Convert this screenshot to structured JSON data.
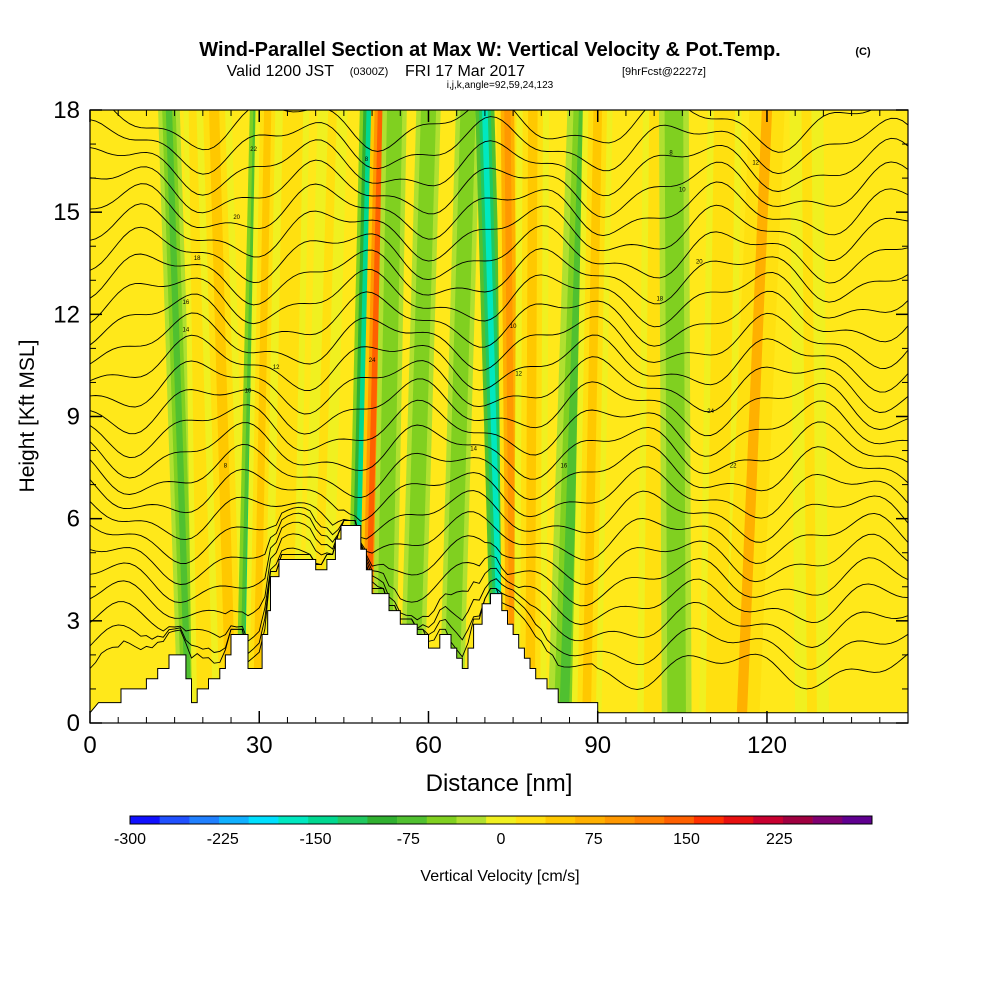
{
  "header": {
    "title": "Wind-Parallel Section at Max W: Vertical Velocity & Pot.Temp.",
    "title_unit": "(C)",
    "valid_prefix": "Valid 1200 JST",
    "valid_utc": "(0300Z)",
    "valid_date": "FRI 17 Mar 2017",
    "forecast": "[9hrFcst@2227z]",
    "indices": "i,j,k,angle=92,59,24,123"
  },
  "chart_data": {
    "type": "heatmap",
    "xlabel": "Distance [nm]",
    "ylabel": "Height [Kft MSL]",
    "xlim": [
      0,
      145
    ],
    "ylim": [
      0,
      18
    ],
    "x_ticks": [
      0,
      30,
      60,
      90,
      120
    ],
    "y_ticks": [
      0,
      3,
      6,
      9,
      12,
      15,
      18
    ],
    "terrain_profile": [
      [
        0,
        0.3
      ],
      [
        1.5,
        0.6
      ],
      [
        5.5,
        0.6
      ],
      [
        5.5,
        1.0
      ],
      [
        10,
        1.0
      ],
      [
        10,
        1.3
      ],
      [
        12,
        1.3
      ],
      [
        12,
        1.6
      ],
      [
        14,
        1.6
      ],
      [
        14,
        2.0
      ],
      [
        17,
        2.0
      ],
      [
        17,
        1.3
      ],
      [
        18,
        1.3
      ],
      [
        18,
        0.6
      ],
      [
        19,
        0.6
      ],
      [
        19,
        1.0
      ],
      [
        21,
        1.0
      ],
      [
        21,
        1.3
      ],
      [
        23,
        1.3
      ],
      [
        23,
        1.6
      ],
      [
        24,
        1.6
      ],
      [
        24,
        2.0
      ],
      [
        25,
        2.0
      ],
      [
        25,
        2.6
      ],
      [
        28,
        2.6
      ],
      [
        28,
        1.6
      ],
      [
        30.5,
        1.6
      ],
      [
        30.5,
        2.6
      ],
      [
        31.5,
        2.6
      ],
      [
        31.5,
        3.3
      ],
      [
        32,
        3.3
      ],
      [
        32,
        4.3
      ],
      [
        33.5,
        4.3
      ],
      [
        33.5,
        4.8
      ],
      [
        40,
        4.8
      ],
      [
        40,
        4.5
      ],
      [
        42,
        4.5
      ],
      [
        42,
        4.8
      ],
      [
        43.5,
        4.8
      ],
      [
        43.5,
        5.4
      ],
      [
        44.5,
        5.4
      ],
      [
        44.5,
        5.8
      ],
      [
        48,
        5.8
      ],
      [
        48,
        5.1
      ],
      [
        49,
        5.1
      ],
      [
        49,
        4.5
      ],
      [
        50,
        4.5
      ],
      [
        50,
        3.8
      ],
      [
        53,
        3.8
      ],
      [
        53,
        3.3
      ],
      [
        55,
        3.3
      ],
      [
        55,
        2.9
      ],
      [
        58,
        2.9
      ],
      [
        58,
        2.6
      ],
      [
        60,
        2.6
      ],
      [
        60,
        2.2
      ],
      [
        62,
        2.2
      ],
      [
        62,
        2.6
      ],
      [
        64,
        2.6
      ],
      [
        64,
        2.2
      ],
      [
        65,
        2.2
      ],
      [
        65,
        1.9
      ],
      [
        66,
        1.9
      ],
      [
        66,
        1.6
      ],
      [
        67,
        1.6
      ],
      [
        67,
        2.2
      ],
      [
        68,
        2.2
      ],
      [
        68,
        2.9
      ],
      [
        69.5,
        2.9
      ],
      [
        69.5,
        3.5
      ],
      [
        71,
        3.5
      ],
      [
        71,
        3.8
      ],
      [
        73,
        3.8
      ],
      [
        73,
        3.3
      ],
      [
        74,
        3.3
      ],
      [
        74,
        2.9
      ],
      [
        75,
        2.9
      ],
      [
        75,
        2.6
      ],
      [
        76,
        2.6
      ],
      [
        76,
        2.2
      ],
      [
        77,
        2.2
      ],
      [
        77,
        1.9
      ],
      [
        78,
        1.9
      ],
      [
        78,
        1.6
      ],
      [
        79,
        1.6
      ],
      [
        79,
        1.3
      ],
      [
        81,
        1.3
      ],
      [
        81,
        1.0
      ],
      [
        83,
        1.0
      ],
      [
        83,
        0.6
      ],
      [
        90,
        0.6
      ],
      [
        90,
        0.3
      ],
      [
        145,
        0.3
      ]
    ],
    "vertical_velocity_bands": [
      {
        "x_base": 17.5,
        "x_top": 14,
        "width": 1.6,
        "w": -60
      },
      {
        "x_base": 20.5,
        "x_top": 19,
        "width": 2.0,
        "w": 40
      },
      {
        "x_base": 25,
        "x_top": 22,
        "width": 2.6,
        "w": 50
      },
      {
        "x_base": 27.5,
        "x_top": 30,
        "width": 1.4,
        "w": -110
      },
      {
        "x_base": 29.5,
        "x_top": 31.5,
        "width": 1.8,
        "w": 70
      },
      {
        "x_base": 34,
        "x_top": 36,
        "width": 2.4,
        "w": 40
      },
      {
        "x_base": 40,
        "x_top": 43,
        "width": 2.2,
        "w": 30
      },
      {
        "x_base": 47,
        "x_top": 49.5,
        "width": 1.4,
        "w": -140
      },
      {
        "x_base": 49,
        "x_top": 51.5,
        "width": 1.4,
        "w": 170
      },
      {
        "x_base": 52,
        "x_top": 54,
        "width": 1.8,
        "w": -45
      },
      {
        "x_base": 57,
        "x_top": 60,
        "width": 1.8,
        "w": -40
      },
      {
        "x_base": 64,
        "x_top": 67,
        "width": 1.8,
        "w": -45
      },
      {
        "x_base": 73,
        "x_top": 70,
        "width": 1.4,
        "w": -160
      },
      {
        "x_base": 75,
        "x_top": 74,
        "width": 1.6,
        "w": 120
      },
      {
        "x_base": 78,
        "x_top": 78.5,
        "width": 2.4,
        "w": 50
      },
      {
        "x_base": 84,
        "x_top": 87.5,
        "width": 2.4,
        "w": -60
      },
      {
        "x_base": 88,
        "x_top": 90,
        "width": 2.2,
        "w": 55
      },
      {
        "x_base": 100,
        "x_top": 101,
        "width": 2.5,
        "w": 40
      },
      {
        "x_base": 104,
        "x_top": 103.5,
        "width": 2.2,
        "w": -40
      },
      {
        "x_base": 111,
        "x_top": 112.5,
        "width": 2.5,
        "w": 45
      },
      {
        "x_base": 115.5,
        "x_top": 120,
        "width": 2.6,
        "w": 75
      },
      {
        "x_base": 128,
        "x_top": 127,
        "width": 2.5,
        "w": 25
      }
    ],
    "colorbar": {
      "label": "Vertical Velocity [cm/s]",
      "min": -300,
      "max": 300,
      "step": 25,
      "tick_values": [
        -300,
        -225,
        -150,
        -75,
        0,
        75,
        150,
        225
      ],
      "tick_labels": [
        "-300",
        "-225",
        "-150",
        "-75",
        "0",
        "75",
        "150",
        "225"
      ],
      "colors": [
        "#1010ff",
        "#2050ff",
        "#2080ff",
        "#10b0ff",
        "#00e0ff",
        "#00e8c0",
        "#00d890",
        "#20c860",
        "#30b030",
        "#50c030",
        "#80d020",
        "#b0e030",
        "#f0f020",
        "#ffe010",
        "#ffc800",
        "#ffb000",
        "#ff9800",
        "#ff8000",
        "#ff6000",
        "#ff3000",
        "#e81010",
        "#c80030",
        "#a00040",
        "#800070",
        "#600090"
      ]
    },
    "contour_labels": [
      "8",
      "10",
      "12",
      "14",
      "16",
      "18",
      "20",
      "22",
      "24"
    ]
  }
}
